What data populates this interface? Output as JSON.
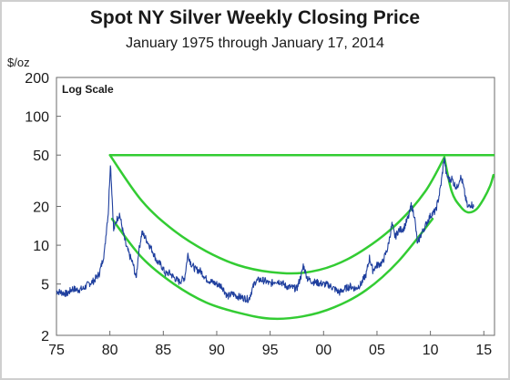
{
  "chart_data": {
    "type": "line",
    "title": "Spot NY Silver Weekly Closing Price",
    "subtitle": "January 1975 through January 17, 2014",
    "ylabel": "$/oz",
    "annotation": "Log Scale",
    "y_scale": "log",
    "ylim": [
      2,
      200
    ],
    "xlim": [
      1975,
      2016
    ],
    "x_ticks": [
      {
        "value": 1975,
        "label": "75"
      },
      {
        "value": 1980,
        "label": "80"
      },
      {
        "value": 1985,
        "label": "85"
      },
      {
        "value": 1990,
        "label": "90"
      },
      {
        "value": 1995,
        "label": "95"
      },
      {
        "value": 2000,
        "label": "00"
      },
      {
        "value": 2005,
        "label": "05"
      },
      {
        "value": 2010,
        "label": "10"
      },
      {
        "value": 2015,
        "label": "15"
      }
    ],
    "y_ticks": [
      {
        "value": 2,
        "label": "2"
      },
      {
        "value": 5,
        "label": "5"
      },
      {
        "value": 10,
        "label": "10"
      },
      {
        "value": 20,
        "label": "20"
      },
      {
        "value": 50,
        "label": "50"
      },
      {
        "value": 100,
        "label": "100"
      },
      {
        "value": 200,
        "label": "200"
      }
    ],
    "grid": false,
    "series": [
      {
        "color": "#1f3f9e",
        "x": [
          1975.0,
          1975.5,
          1976.0,
          1976.5,
          1977.0,
          1977.5,
          1978.0,
          1978.5,
          1979.0,
          1979.3,
          1979.5,
          1979.7,
          1979.85,
          1980.05,
          1980.15,
          1980.25,
          1980.35,
          1980.6,
          1980.9,
          1981.2,
          1981.5,
          1981.8,
          1982.2,
          1982.45,
          1982.7,
          1983.0,
          1983.3,
          1983.7,
          1984.0,
          1984.4,
          1984.8,
          1985.2,
          1985.6,
          1986.0,
          1986.5,
          1987.0,
          1987.3,
          1987.6,
          1988.0,
          1988.5,
          1989.0,
          1989.5,
          1990.0,
          1990.5,
          1991.0,
          1991.5,
          1992.0,
          1992.5,
          1993.0,
          1993.3,
          1993.6,
          1994.0,
          1994.5,
          1995.0,
          1995.5,
          1996.0,
          1996.5,
          1997.0,
          1997.5,
          1998.0,
          1998.1,
          1998.5,
          1999.0,
          1999.5,
          2000.0,
          2000.5,
          2001.0,
          2001.5,
          2002.0,
          2002.5,
          2003.0,
          2003.5,
          2004.0,
          2004.3,
          2004.6,
          2005.0,
          2005.5,
          2006.0,
          2006.4,
          2006.7,
          2007.0,
          2007.5,
          2008.0,
          2008.2,
          2008.5,
          2008.8,
          2009.0,
          2009.5,
          2010.0,
          2010.5,
          2010.8,
          2011.0,
          2011.3,
          2011.5,
          2011.8,
          2012.0,
          2012.2,
          2012.5,
          2012.8,
          2013.0,
          2013.3,
          2013.5,
          2013.8,
          2014.05
        ],
        "y": [
          4.4,
          4.3,
          4.2,
          4.6,
          4.5,
          4.6,
          5.0,
          5.3,
          6.0,
          7.5,
          9.0,
          14.0,
          18.0,
          44.0,
          30.0,
          20.0,
          13.0,
          15.5,
          17.5,
          13.0,
          10.0,
          8.5,
          7.0,
          5.5,
          9.0,
          12.5,
          11.5,
          10.0,
          9.0,
          7.5,
          7.0,
          6.0,
          6.1,
          5.6,
          5.2,
          5.6,
          8.5,
          7.2,
          6.5,
          6.3,
          5.5,
          5.2,
          5.0,
          4.8,
          4.0,
          4.2,
          4.0,
          3.9,
          3.8,
          4.5,
          5.2,
          5.4,
          5.3,
          5.0,
          5.3,
          5.2,
          4.8,
          4.7,
          4.6,
          6.2,
          7.0,
          5.5,
          5.2,
          5.1,
          5.0,
          4.9,
          4.6,
          4.3,
          4.6,
          4.8,
          4.6,
          5.0,
          6.0,
          8.0,
          6.4,
          7.0,
          7.3,
          9.5,
          14.5,
          11.5,
          13.0,
          13.5,
          17.0,
          20.5,
          17.0,
          10.0,
          11.5,
          14.0,
          17.0,
          18.5,
          24.0,
          30.0,
          48.0,
          35.0,
          32.0,
          33.0,
          30.0,
          28.0,
          34.0,
          31.0,
          23.0,
          19.5,
          21.0,
          19.8
        ]
      }
    ],
    "overlays": [
      {
        "type": "horizontal_line",
        "color": "#33cc33",
        "y": 50,
        "x": [
          1980.0,
          2016.0
        ]
      },
      {
        "type": "curve",
        "color": "#33cc33",
        "x": [
          1980.0,
          1983.0,
          1986.0,
          1989.0,
          1992.0,
          1995.0,
          1998.0,
          2001.0,
          2004.0,
          2007.0,
          2009.5,
          2011.3
        ],
        "y": [
          50,
          22,
          13,
          9,
          7,
          6.2,
          6.1,
          7.0,
          9.5,
          15,
          26,
          48
        ]
      },
      {
        "type": "curve",
        "color": "#33cc33",
        "x": [
          1980.2,
          1983.0,
          1986.0,
          1989.0,
          1992.0,
          1995.0,
          1998.0,
          2001.0,
          2004.0,
          2007.0,
          2010.2
        ],
        "y": [
          16,
          8,
          5,
          3.6,
          3.0,
          2.7,
          2.8,
          3.3,
          4.5,
          7.5,
          16
        ]
      },
      {
        "type": "curve",
        "color": "#33cc33",
        "x": [
          2011.3,
          2012.0,
          2012.8,
          2013.5,
          2014.3,
          2015.0,
          2015.6,
          2015.9
        ],
        "y": [
          48,
          26,
          20,
          18,
          19,
          23,
          29,
          35
        ]
      }
    ]
  }
}
